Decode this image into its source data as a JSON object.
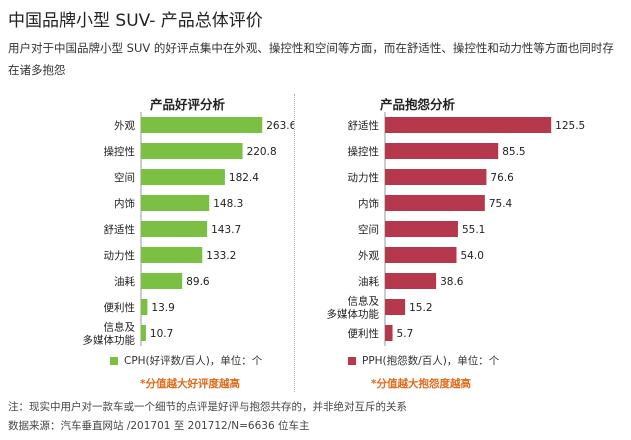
{
  "title": "中国品牌小型 SUV- 产品总体评价",
  "subtitle": "用户对于中国品牌小型 SUV 的好评点集中在外观、操控性和空间等方面，而在舒适性、操控性和动力性等方面也同时存在诸多抱怨",
  "chart_data": [
    {
      "type": "bar",
      "orientation": "horizontal",
      "title": "产品好评分析",
      "categories": [
        "外观",
        "操控性",
        "空间",
        "内饰",
        "舒适性",
        "动力性",
        "油耗",
        "便利性",
        "信息及多媒体功能"
      ],
      "category_labels": [
        [
          "外观"
        ],
        [
          "操控性"
        ],
        [
          "空间"
        ],
        [
          "内饰"
        ],
        [
          "舒适性"
        ],
        [
          "动力性"
        ],
        [
          "油耗"
        ],
        [
          "便利性"
        ],
        [
          "信息及",
          "多媒体功能"
        ]
      ],
      "series": [
        {
          "name": "CPH(好评数/百人)，单位：个",
          "values": [
            263.6,
            220.8,
            182.4,
            148.3,
            143.7,
            133.2,
            89.6,
            13.9,
            10.7
          ]
        }
      ],
      "color": "#7bbf43",
      "note": "*分值越大好评度越高",
      "xlim": [
        0,
        300
      ]
    },
    {
      "type": "bar",
      "orientation": "horizontal",
      "title": "产品抱怨分析",
      "categories": [
        "舒适性",
        "操控性",
        "动力性",
        "内饰",
        "空间",
        "外观",
        "油耗",
        "信息及多媒体功能",
        "便利性"
      ],
      "category_labels": [
        [
          "舒适性"
        ],
        [
          "操控性"
        ],
        [
          "动力性"
        ],
        [
          "内饰"
        ],
        [
          "空间"
        ],
        [
          "外观"
        ],
        [
          "油耗"
        ],
        [
          "信息及",
          "多媒体功能"
        ],
        [
          "便利性"
        ]
      ],
      "series": [
        {
          "name": "PPH(抱怨数/百人)，单位：个",
          "values": [
            125.5,
            85.5,
            76.6,
            75.4,
            55.1,
            54.0,
            38.6,
            15.2,
            5.7
          ]
        }
      ],
      "color": "#b5384d",
      "note": "*分值越大抱怨度越高",
      "xlim": [
        0,
        145
      ]
    }
  ],
  "footnote": "注：现实中用户对一款车或一个细节的点评是好评与抱怨共存的，并非绝对互斥的关系",
  "source": "数据来源：汽车垂直网站 /201701 至 201712/N=6636 位车主"
}
